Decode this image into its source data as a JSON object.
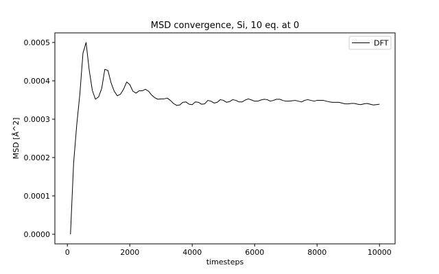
{
  "chart_data": {
    "type": "line",
    "title": "MSD convergence, Si, 10 eq. at 0",
    "xlabel": "timesteps",
    "ylabel": "MSD [Å^2]",
    "xlim": [
      -400,
      10500
    ],
    "ylim": [
      -2.5e-05,
      0.000525
    ],
    "xticks": [
      0,
      2000,
      4000,
      6000,
      8000,
      10000
    ],
    "xtick_labels": [
      "0",
      "2000",
      "4000",
      "6000",
      "8000",
      "10000"
    ],
    "yticks": [
      0,
      0.0001,
      0.0002,
      0.0003,
      0.0004,
      0.0005
    ],
    "ytick_labels": [
      "0.0000",
      "0.0001",
      "0.0002",
      "0.0003",
      "0.0004",
      "0.0005"
    ],
    "grid": false,
    "legend_position": "top-right",
    "series": [
      {
        "name": "DFT",
        "color": "#000000",
        "x": [
          100,
          200,
          300,
          400,
          500,
          600,
          700,
          800,
          900,
          1000,
          1100,
          1200,
          1300,
          1400,
          1500,
          1600,
          1700,
          1800,
          1900,
          2000,
          2100,
          2200,
          2300,
          2400,
          2500,
          2600,
          2700,
          2800,
          2900,
          3000,
          3100,
          3200,
          3300,
          3400,
          3500,
          3600,
          3700,
          3800,
          3900,
          4000,
          4100,
          4200,
          4300,
          4400,
          4500,
          4600,
          4700,
          4800,
          4900,
          5000,
          5100,
          5200,
          5300,
          5400,
          5500,
          5600,
          5700,
          5800,
          5900,
          6000,
          6100,
          6200,
          6300,
          6400,
          6500,
          6600,
          6700,
          6800,
          6900,
          7000,
          7100,
          7200,
          7300,
          7400,
          7500,
          7600,
          7700,
          7800,
          7900,
          8000,
          8100,
          8200,
          8300,
          8400,
          8500,
          8600,
          8700,
          8800,
          8900,
          9000,
          9100,
          9200,
          9300,
          9400,
          9500,
          9600,
          9700,
          9800,
          9900,
          10000
        ],
        "values": [
          0.0,
          0.000185,
          0.000285,
          0.000365,
          0.000472,
          0.0005,
          0.000428,
          0.000375,
          0.000352,
          0.000358,
          0.00038,
          0.00043,
          0.000427,
          0.000395,
          0.000373,
          0.000361,
          0.000365,
          0.000378,
          0.000397,
          0.00039,
          0.000373,
          0.000368,
          0.000374,
          0.000374,
          0.000378,
          0.000373,
          0.000363,
          0.000356,
          0.000352,
          0.000353,
          0.000353,
          0.000355,
          0.000349,
          0.000341,
          0.000336,
          0.000337,
          0.000344,
          0.000345,
          0.000339,
          0.000338,
          0.000345,
          0.000344,
          0.000339,
          0.00034,
          0.000349,
          0.000347,
          0.000342,
          0.000344,
          0.000351,
          0.000349,
          0.000344,
          0.000346,
          0.000351,
          0.000349,
          0.000345,
          0.000345,
          0.00035,
          0.000353,
          0.00035,
          0.000347,
          0.000347,
          0.00035,
          0.000352,
          0.000351,
          0.000347,
          0.000349,
          0.000352,
          0.000352,
          0.000349,
          0.000347,
          0.000347,
          0.000348,
          0.000349,
          0.000347,
          0.000345,
          0.000349,
          0.000351,
          0.000349,
          0.000347,
          0.000349,
          0.000349,
          0.000349,
          0.000347,
          0.000345,
          0.000344,
          0.000344,
          0.000344,
          0.000342,
          0.00034,
          0.00034,
          0.000341,
          0.000341,
          0.000339,
          0.000338,
          0.00034,
          0.000341,
          0.000339,
          0.000337,
          0.000338,
          0.000339
        ]
      }
    ]
  }
}
